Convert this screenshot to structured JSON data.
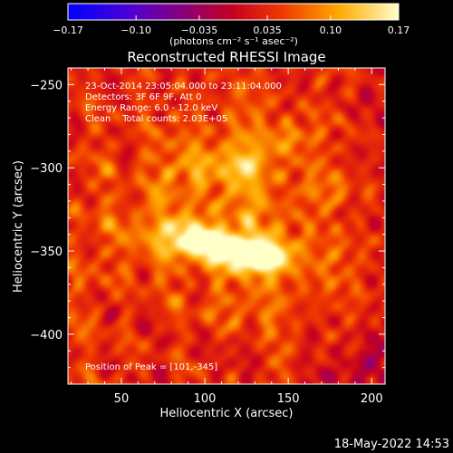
{
  "chart_data": {
    "type": "heatmap",
    "title": "Reconstructed RHESSI Image",
    "xlabel": "Heliocentric X (arcsec)",
    "ylabel": "Heliocentric Y (arcsec)",
    "xlim": [
      18,
      208
    ],
    "ylim": [
      -430,
      -240
    ],
    "xticks": [
      50,
      100,
      150,
      200
    ],
    "yticks": [
      -250,
      -300,
      -350,
      -400
    ],
    "colorbar": {
      "range": [
        -0.17,
        0.17
      ],
      "tick_values": [
        -0.17,
        -0.1,
        -0.035,
        0.035,
        0.1,
        0.17
      ],
      "tick_labels": [
        "-0.17",
        "-0.10",
        "-0.035",
        "0.035",
        "0.10",
        "0.17"
      ],
      "unit_label": "(photons cm⁻² s⁻¹ asec⁻²)"
    },
    "annotations": [
      "23-Oct-2014 23:05:04.000 to 23:11:04.000",
      "Detectors: 3F 6F 9F, Att 0",
      "Energy Range: 6.0 - 12.0 keV",
      "Clean    Total counts: 2.03E+05"
    ],
    "peak_label": "Position of Peak = [101,-345]",
    "sources": [
      {
        "x": 100,
        "y": -345,
        "sx": 10,
        "sy": 5,
        "amp": 0.17
      },
      {
        "x": 126,
        "y": -352,
        "sx": 13,
        "sy": 6,
        "amp": 0.15
      },
      {
        "x": 88,
        "y": -336,
        "sx": 7,
        "sy": 5,
        "amp": 0.09
      },
      {
        "x": 140,
        "y": -355,
        "sx": 9,
        "sy": 6,
        "amp": 0.08
      },
      {
        "x": 115,
        "y": -348,
        "sx": 30,
        "sy": 16,
        "amp": 0.06
      },
      {
        "x": 112,
        "y": -300,
        "sx": 38,
        "sy": 24,
        "amp": 0.05
      },
      {
        "x": 150,
        "y": -282,
        "sx": 8,
        "sy": 6,
        "amp": 0.055
      },
      {
        "x": 120,
        "y": -300,
        "sx": 9,
        "sy": 7,
        "amp": 0.045
      },
      {
        "x": 95,
        "y": -300,
        "sx": 9,
        "sy": 7,
        "amp": 0.04
      },
      {
        "x": 175,
        "y": -315,
        "sx": 10,
        "sy": 7,
        "amp": 0.035
      },
      {
        "x": 60,
        "y": -340,
        "sx": 12,
        "sy": 18,
        "amp": 0.045
      },
      {
        "x": 120,
        "y": -385,
        "sx": 22,
        "sy": 10,
        "amp": 0.035
      },
      {
        "x": 175,
        "y": -360,
        "sx": 10,
        "sy": 14,
        "amp": 0.035
      },
      {
        "x": 200,
        "y": -415,
        "sx": 9,
        "sy": 12,
        "amp": -0.05
      },
      {
        "x": 180,
        "y": -425,
        "sx": 10,
        "sy": 8,
        "amp": -0.035
      }
    ],
    "background_level": 0.035
  },
  "footer": {
    "timestamp": "18-May-2022 14:53"
  }
}
